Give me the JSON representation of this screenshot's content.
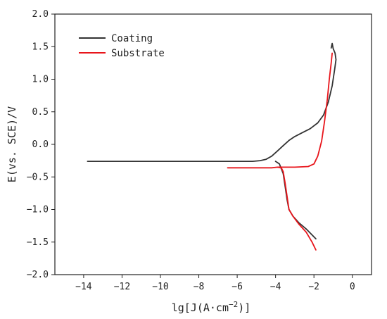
{
  "chart_data": {
    "type": "line",
    "xlabel_main": "lg[J(A·cm",
    "xlabel_sup": "−2",
    "xlabel_end": ")]",
    "ylabel": "E(vs. SCE)/V",
    "xlim": [
      -15.5,
      1
    ],
    "ylim": [
      -2.0,
      2.0
    ],
    "xticks": [
      -14,
      -12,
      -10,
      -8,
      -6,
      -4,
      -2,
      0
    ],
    "xtick_labels": [
      "−14",
      "−12",
      "−10",
      "−8",
      "−6",
      "−4",
      "−2",
      "0"
    ],
    "yticks": [
      -2.0,
      -1.5,
      -1.0,
      -0.5,
      0.0,
      0.5,
      1.0,
      1.5,
      2.0
    ],
    "ytick_labels": [
      "−2.0",
      "−1.5",
      "−1.0",
      "−0.5",
      "0.0",
      "0.5",
      "1.0",
      "1.5",
      "2.0"
    ],
    "legend_position": "top-left",
    "series": [
      {
        "name": "Coating",
        "color": "#333333",
        "points": [
          [
            -13.8,
            -0.26
          ],
          [
            -10,
            -0.26
          ],
          [
            -6,
            -0.26
          ],
          [
            -5.2,
            -0.26
          ],
          [
            -4.8,
            -0.25
          ],
          [
            -4.5,
            -0.23
          ],
          [
            -4.2,
            -0.18
          ],
          [
            -3.9,
            -0.1
          ],
          [
            -3.6,
            -0.02
          ],
          [
            -3.3,
            0.06
          ],
          [
            -3.0,
            0.12
          ],
          [
            -2.6,
            0.18
          ],
          [
            -2.2,
            0.24
          ],
          [
            -1.8,
            0.33
          ],
          [
            -1.5,
            0.45
          ],
          [
            -1.25,
            0.65
          ],
          [
            -1.05,
            0.9
          ],
          [
            -0.92,
            1.15
          ],
          [
            -0.85,
            1.3
          ],
          [
            -0.9,
            1.4
          ],
          [
            -1.0,
            1.47
          ],
          [
            -1.05,
            1.55
          ],
          [
            -1.1,
            1.48
          ]
        ]
      },
      {
        "name": "Coating",
        "color": "#333333",
        "points": [
          [
            -4.0,
            -0.26
          ],
          [
            -3.8,
            -0.3
          ],
          [
            -3.6,
            -0.45
          ],
          [
            -3.5,
            -0.65
          ],
          [
            -3.4,
            -0.85
          ],
          [
            -3.3,
            -1.0
          ],
          [
            -3.1,
            -1.1
          ],
          [
            -2.8,
            -1.2
          ],
          [
            -2.4,
            -1.3
          ],
          [
            -2.0,
            -1.42
          ],
          [
            -1.9,
            -1.45
          ]
        ]
      },
      {
        "name": "Substrate",
        "color": "#e8151b",
        "points": [
          [
            -6.5,
            -0.36
          ],
          [
            -5.0,
            -0.36
          ],
          [
            -4.2,
            -0.36
          ],
          [
            -3.9,
            -0.35
          ],
          [
            -3.7,
            -0.36
          ],
          [
            -3.6,
            -0.42
          ],
          [
            -3.5,
            -0.6
          ],
          [
            -3.4,
            -0.8
          ],
          [
            -3.3,
            -1.0
          ],
          [
            -3.1,
            -1.1
          ],
          [
            -2.8,
            -1.22
          ],
          [
            -2.4,
            -1.35
          ],
          [
            -2.1,
            -1.5
          ],
          [
            -1.9,
            -1.62
          ]
        ]
      },
      {
        "name": "Substrate",
        "color": "#e8151b",
        "points": [
          [
            -3.9,
            -0.35
          ],
          [
            -3.0,
            -0.35
          ],
          [
            -2.3,
            -0.34
          ],
          [
            -2.0,
            -0.3
          ],
          [
            -1.8,
            -0.18
          ],
          [
            -1.6,
            0.05
          ],
          [
            -1.45,
            0.35
          ],
          [
            -1.3,
            0.7
          ],
          [
            -1.2,
            1.0
          ],
          [
            -1.1,
            1.25
          ],
          [
            -1.05,
            1.4
          ]
        ]
      }
    ],
    "legend": [
      {
        "label": "Coating",
        "color": "#333333"
      },
      {
        "label": "Substrate",
        "color": "#e8151b"
      }
    ]
  }
}
